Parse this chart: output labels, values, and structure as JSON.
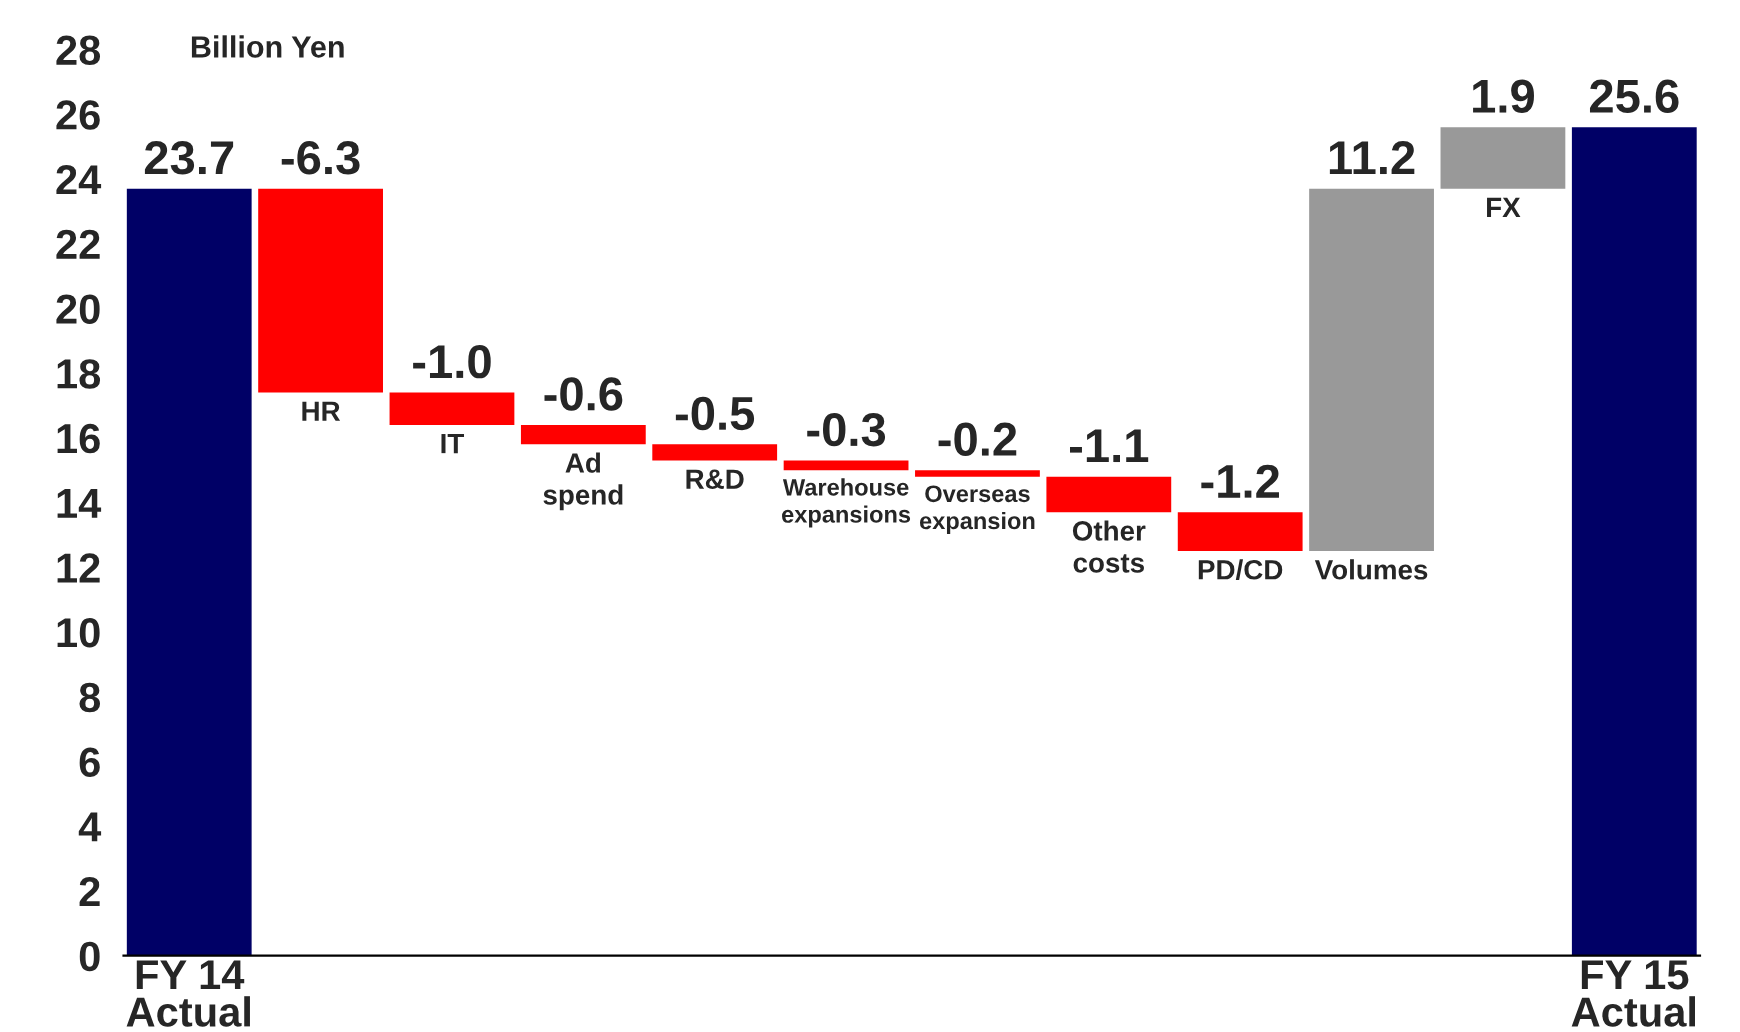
{
  "chart_data": {
    "type": "bar",
    "ylabel": "Billion Yen",
    "categories": [
      "FY 14\nActual",
      "HR",
      "IT",
      "Ad\nspend",
      "R&D",
      "Warehouse\nexpansions",
      "Overseas\nexpansion",
      "Other\ncosts",
      "PD/CD",
      "Volumes",
      "FX",
      "FY 15\nActual"
    ],
    "values": [
      23.7,
      -6.3,
      -1.0,
      -0.6,
      -0.5,
      -0.3,
      -0.2,
      -1.1,
      -1.2,
      11.2,
      1.9,
      25.6
    ],
    "base": [
      0,
      23.7,
      17.4,
      16.4,
      15.8,
      15.3,
      15.0,
      14.8,
      13.7,
      12.5,
      23.7,
      0
    ],
    "colors": [
      "#000066",
      "#ff0000",
      "#ff0000",
      "#ff0000",
      "#ff0000",
      "#ff0000",
      "#ff0000",
      "#ff0000",
      "#ff0000",
      "#999999",
      "#999999",
      "#000066"
    ],
    "ylim": [
      0,
      28
    ],
    "yticks": [
      0,
      2,
      4,
      6,
      8,
      10,
      12,
      14,
      16,
      18,
      20,
      22,
      24,
      26,
      28
    ],
    "value_labels": [
      "23.7",
      "-6.3",
      "-1.0",
      "-0.6",
      "-0.5",
      "-0.3",
      "-0.2",
      "-1.1",
      "-1.2",
      "11.2",
      "1.9",
      "25.6"
    ],
    "grid": false
  }
}
